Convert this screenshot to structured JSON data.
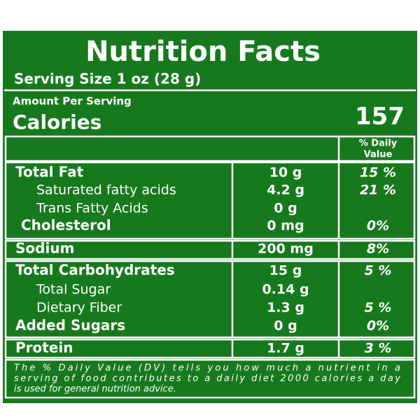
{
  "header": {
    "title": "Nutrition Facts",
    "serving_size": "Serving Size 1 oz (28 g)"
  },
  "calories": {
    "amount_per_serving": "Amount Per Serving",
    "label": "Calories",
    "value": "157"
  },
  "table": {
    "dv_header": [
      "% Daily",
      "Value"
    ],
    "groups": [
      [
        [
          "Total Fat",
          "10 g",
          "15 %"
        ],
        [
          "Saturated fatty acids",
          "4.2 g",
          "21 %"
        ],
        [
          "Trans Fatty Acids",
          "0 g",
          null
        ],
        [
          "Cholesterol",
          "0 mg",
          "0%"
        ]
      ],
      [
        [
          "Sodium",
          "200 mg",
          "8%"
        ]
      ],
      [
        [
          "Total Carbohydrates",
          "15 g",
          "5 %"
        ],
        [
          "Total Sugar",
          "0.14 g",
          null
        ],
        [
          "Dietary Fiber",
          "1.3 g",
          "5 %"
        ],
        [
          "Added Sugars",
          "0 g",
          "0%"
        ]
      ],
      [
        [
          "Protein",
          "1.7 g",
          "3 %"
        ]
      ]
    ]
  },
  "footnote": [
    "The % Daily Value (DV) tells you how much a nutrient in a",
    "serving of food contributes to a daily diet 2000 calories a day",
    "is used for general nutrition advice."
  ]
}
